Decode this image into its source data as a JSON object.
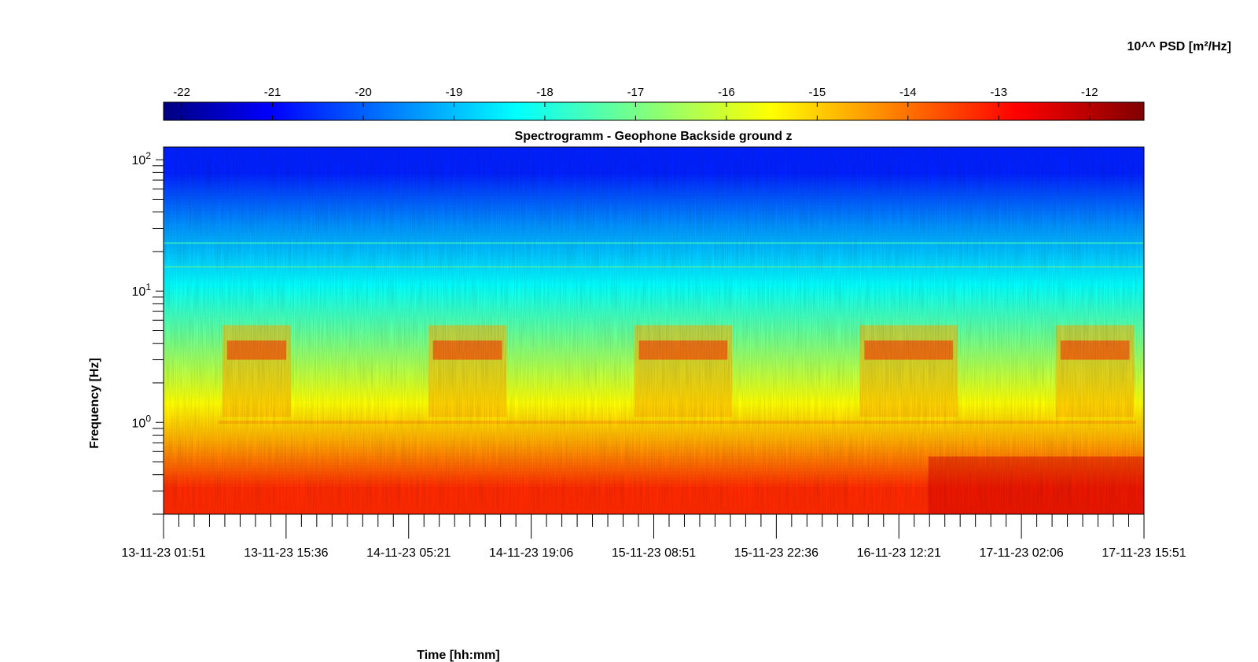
{
  "chart_data": {
    "type": "heatmap",
    "title": "Spectrogramm - Geophone Backside ground z",
    "xlabel": "Time [hh:mm]",
    "ylabel": "Frequency [Hz]",
    "colorbar": {
      "label": "10^^ PSD [m²/Hz]",
      "ticks": [
        "-22",
        "-21",
        "-20",
        "-19",
        "-18",
        "-17",
        "-16",
        "-15",
        "-14",
        "-13",
        "-12"
      ],
      "tick_values": [
        -22,
        -21,
        -20,
        -19,
        -18,
        -17,
        -16,
        -15,
        -14,
        -13,
        -12
      ],
      "range": [
        -22.2,
        -11.4
      ],
      "colormap": "jet"
    },
    "x_ticks": [
      "13-11-23 01:51",
      "13-11-23 15:36",
      "14-11-23 05:21",
      "14-11-23 19:06",
      "15-11-23 08:51",
      "15-11-23 22:36",
      "16-11-23 12:21",
      "17-11-23 02:06",
      "17-11-23 15:51"
    ],
    "x_minor_ticks_per_major": 7,
    "y_scale": "log",
    "y_range_hz": [
      0.2,
      125
    ],
    "y_ticks": [
      {
        "value": 1,
        "base": "10",
        "exp": "0"
      },
      {
        "value": 10,
        "base": "10",
        "exp": "1"
      },
      {
        "value": 100,
        "base": "10",
        "exp": "2"
      }
    ],
    "description_bands": [
      {
        "freq_range_hz": [
          50,
          125
        ],
        "psd_log10": -20.5
      },
      {
        "freq_range_hz": [
          20,
          50
        ],
        "psd_log10": -19.3
      },
      {
        "freq_range_hz": [
          8,
          20
        ],
        "psd_log10": -18.3
      },
      {
        "freq_range_hz": [
          4,
          8
        ],
        "psd_log10": -17.3
      },
      {
        "freq_range_hz": [
          1.1,
          4
        ],
        "psd_log10": -16.0
      },
      {
        "freq_range_hz": [
          0.5,
          1.1
        ],
        "psd_log10": -14.6
      },
      {
        "freq_range_hz": [
          0.2,
          0.5
        ],
        "psd_log10": -13.2
      }
    ]
  }
}
